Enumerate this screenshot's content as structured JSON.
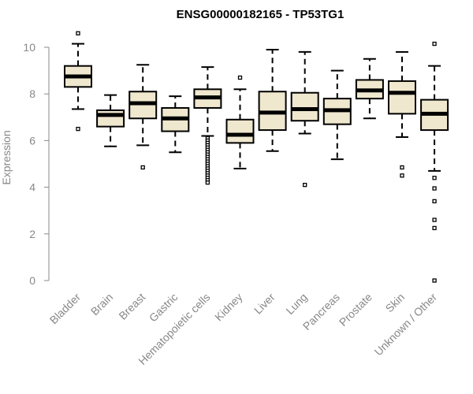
{
  "chart_data": {
    "type": "box",
    "title": "ENSG00000182165 - TP53TG1",
    "ylabel": "Expression",
    "xlabel": "",
    "ylim": [
      0,
      10.6
    ],
    "yticks": [
      0,
      2,
      4,
      6,
      8,
      10
    ],
    "grid": false,
    "box_fill": "#EFE7CE",
    "categories": [
      "Bladder",
      "Brain",
      "Breast",
      "Gastric",
      "Hematopoietic cells",
      "Kidney",
      "Liver",
      "Lung",
      "Pancreas",
      "Prostate",
      "Skin",
      "Unknown / Other"
    ],
    "boxes": [
      {
        "q1": 8.3,
        "median": 8.75,
        "q3": 9.2,
        "whisker_low": 7.35,
        "whisker_high": 10.15,
        "outliers": [
          6.5,
          10.6
        ]
      },
      {
        "q1": 6.6,
        "median": 7.1,
        "q3": 7.3,
        "whisker_low": 5.75,
        "whisker_high": 7.95,
        "outliers": []
      },
      {
        "q1": 6.95,
        "median": 7.6,
        "q3": 8.1,
        "whisker_low": 5.8,
        "whisker_high": 9.25,
        "outliers": [
          4.85
        ]
      },
      {
        "q1": 6.4,
        "median": 6.95,
        "q3": 7.4,
        "whisker_low": 5.5,
        "whisker_high": 7.9,
        "outliers": []
      },
      {
        "q1": 7.4,
        "median": 7.85,
        "q3": 8.2,
        "whisker_low": 6.2,
        "whisker_high": 9.15,
        "outliers": [
          6.1,
          6.0,
          5.9,
          5.8,
          5.7,
          5.6,
          5.5,
          5.4,
          5.3,
          5.2,
          5.1,
          5.0,
          4.9,
          4.8,
          4.7,
          4.6,
          4.5,
          4.4,
          4.3,
          4.2
        ]
      },
      {
        "q1": 5.9,
        "median": 6.25,
        "q3": 6.9,
        "whisker_low": 4.8,
        "whisker_high": 8.2,
        "outliers": [
          8.7
        ]
      },
      {
        "q1": 6.45,
        "median": 7.2,
        "q3": 8.1,
        "whisker_low": 5.55,
        "whisker_high": 9.9,
        "outliers": []
      },
      {
        "q1": 6.85,
        "median": 7.35,
        "q3": 8.05,
        "whisker_low": 6.3,
        "whisker_high": 9.8,
        "outliers": [
          4.1
        ]
      },
      {
        "q1": 6.7,
        "median": 7.3,
        "q3": 7.8,
        "whisker_low": 5.2,
        "whisker_high": 9.0,
        "outliers": []
      },
      {
        "q1": 7.8,
        "median": 8.15,
        "q3": 8.6,
        "whisker_low": 6.95,
        "whisker_high": 9.5,
        "outliers": []
      },
      {
        "q1": 7.15,
        "median": 8.05,
        "q3": 8.55,
        "whisker_low": 6.15,
        "whisker_high": 9.8,
        "outliers": [
          4.85,
          4.5
        ]
      },
      {
        "q1": 6.45,
        "median": 7.15,
        "q3": 7.75,
        "whisker_low": 4.7,
        "whisker_high": 9.2,
        "outliers": [
          10.15,
          4.4,
          3.95,
          3.4,
          2.6,
          2.25,
          0.0
        ]
      }
    ]
  }
}
